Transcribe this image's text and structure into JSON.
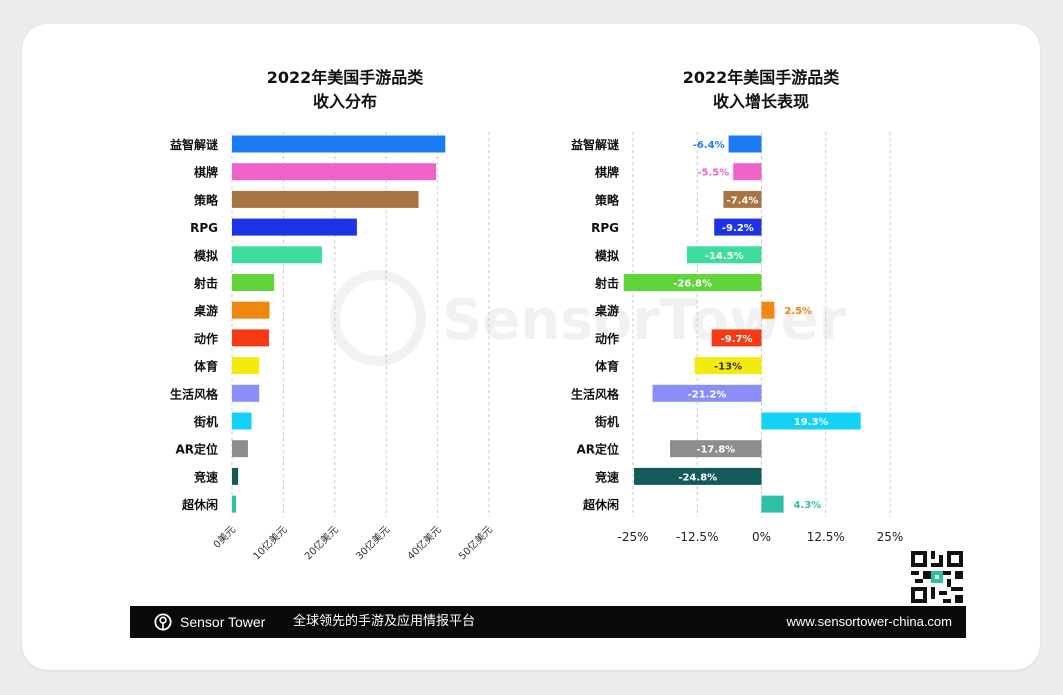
{
  "footer": {
    "brand": "Sensor Tower",
    "slogan": "全球领先的手游及应用情报平台",
    "website": "www.sensortower-china.com"
  },
  "watermark": {
    "text": "SensorTower"
  },
  "chart_data": [
    {
      "type": "bar",
      "orientation": "horizontal",
      "title": [
        "2022年美国手游品类",
        "收入分布"
      ],
      "categories": [
        "益智解谜",
        "棋牌",
        "策略",
        "RPG",
        "模拟",
        "射击",
        "桌游",
        "动作",
        "体育",
        "生活风格",
        "街机",
        "AR定位",
        "竞速",
        "超休闲"
      ],
      "values": [
        41.5,
        39.7,
        36.3,
        24.3,
        17.5,
        8.2,
        7.3,
        7.2,
        5.3,
        5.3,
        3.8,
        3.1,
        1.2,
        0.8
      ],
      "colors": [
        "#1a7cf5",
        "#ef63c8",
        "#a97443",
        "#1f33e6",
        "#3fdd9d",
        "#60d43b",
        "#f0870e",
        "#f53a14",
        "#f4ea0d",
        "#8a8ef9",
        "#12d3f5",
        "#8d8d8d",
        "#135b58",
        "#30bfa7"
      ],
      "xlim": [
        0,
        50
      ],
      "xticks": [
        0,
        10,
        20,
        30,
        40,
        50
      ],
      "xtick_labels": [
        "0美元",
        "10亿美元",
        "20亿美元",
        "30亿美元",
        "40亿美元",
        "50亿美元"
      ],
      "grid": true
    },
    {
      "type": "bar",
      "orientation": "horizontal",
      "title": [
        "2022年美国手游品类",
        "收入增长表现"
      ],
      "categories": [
        "益智解谜",
        "棋牌",
        "策略",
        "RPG",
        "模拟",
        "射击",
        "桌游",
        "动作",
        "体育",
        "生活风格",
        "街机",
        "AR定位",
        "竞速",
        "超休闲"
      ],
      "values": [
        -6.4,
        -5.5,
        -7.4,
        -9.2,
        -14.5,
        -26.8,
        2.5,
        -9.7,
        -13,
        -21.2,
        19.3,
        -17.8,
        -24.8,
        4.3
      ],
      "value_labels": [
        "-6.4%",
        "-5.5%",
        "-7.4%",
        "-9.2%",
        "-14.5%",
        "-26.8%",
        "2.5%",
        "-9.7%",
        "-13%",
        "-21.2%",
        "19.3%",
        "-17.8%",
        "-24.8%",
        "4.3%"
      ],
      "colors": [
        "#1a7cf5",
        "#ef63c8",
        "#a97443",
        "#1f33e6",
        "#3fdd9d",
        "#60d43b",
        "#f0870e",
        "#f53a14",
        "#f4ea0d",
        "#8a8ef9",
        "#12d3f5",
        "#8d8d8d",
        "#135b58",
        "#30bfa7"
      ],
      "xlim": [
        -25,
        25
      ],
      "xticks": [
        -25,
        -12.5,
        0,
        12.5,
        25
      ],
      "xtick_labels": [
        "-25%",
        "-12.5%",
        "0%",
        "12.5%",
        "25%"
      ],
      "grid": true
    }
  ]
}
